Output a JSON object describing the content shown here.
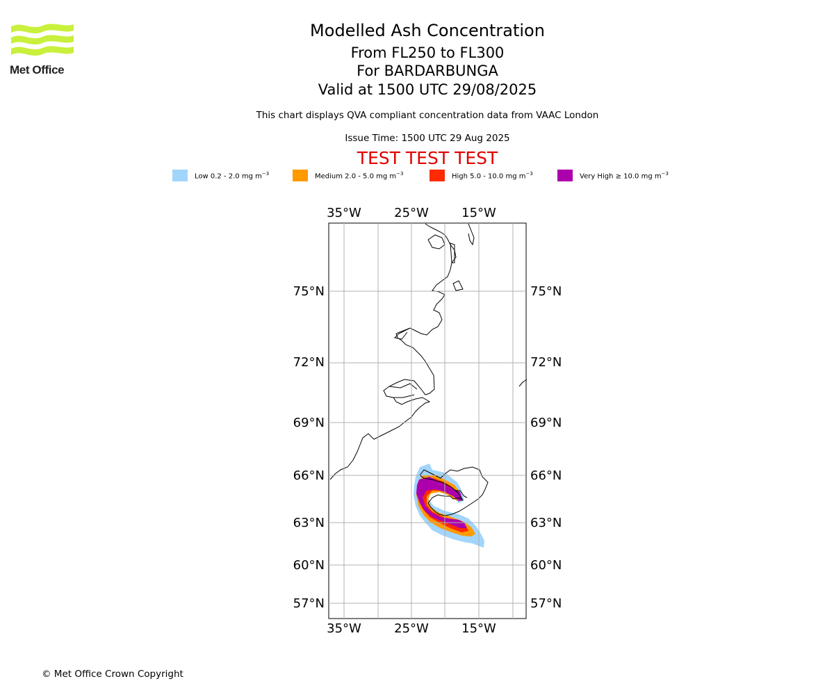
{
  "logo": {
    "text": "Met Office",
    "color": "#c8f03c"
  },
  "header": {
    "title": "Modelled Ash Concentration",
    "levels": "From FL250 to FL300",
    "volcano": "For BARDARBUNGA",
    "valid": "Valid at 1500 UTC 29/08/2025",
    "subtitle": "This chart displays QVA compliant concentration data from VAAC London",
    "issue": "Issue Time: 1500 UTC 29 Aug 2025",
    "test_banner": "TEST TEST TEST"
  },
  "legend": [
    {
      "name": "Low 0.2 - 2.0 mg m",
      "color": "#a2d5fb"
    },
    {
      "name": "Medium 2.0 - 5.0 mg m",
      "color": "#ff9a00"
    },
    {
      "name": "High 5.0 - 10.0 mg m",
      "color": "#ff2a00"
    },
    {
      "name": "Very High ≥ 10.0 mg m",
      "color": "#ad00ad"
    }
  ],
  "legend_exponent": "−3",
  "map": {
    "lon_labels": [
      "35°W",
      "25°W",
      "15°W"
    ],
    "lat_labels": [
      "75°N",
      "72°N",
      "69°N",
      "66°N",
      "63°N",
      "60°N",
      "57°N"
    ]
  },
  "footer": {
    "copyright": "© Met Office Crown Copyright"
  }
}
